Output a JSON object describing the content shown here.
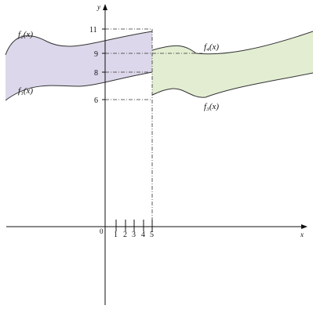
{
  "axes": {
    "x_label": "x",
    "y_label": "y",
    "origin_label": "0"
  },
  "x_ticks": [
    "1",
    "2",
    "3",
    "4",
    "5"
  ],
  "y_ticks": [
    "11",
    "9",
    "8",
    "6"
  ],
  "functions": {
    "f1": "f₁(x)",
    "f2": "f₂(x)",
    "f3": "f₃(x)",
    "f4": "f₄(x)"
  },
  "colors": {
    "left_region": "#dcd7ea",
    "right_region": "#e2edd2",
    "curve": "#333333",
    "axis": "#111111"
  }
}
